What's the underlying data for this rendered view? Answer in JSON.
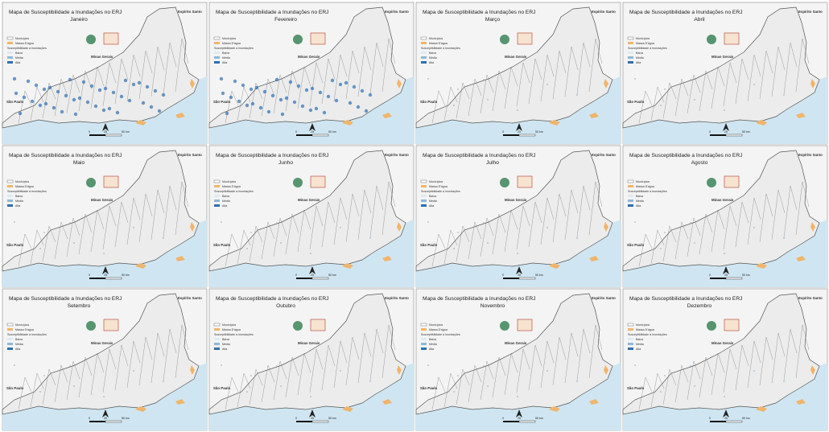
{
  "panels": [
    {
      "title": "Mapa de Susceptibilidade a Inundações no ERJ",
      "month": "Janeiro"
    },
    {
      "title": "Mapa de Susceptibilidade a Inundações no ERJ",
      "month": "Fevereiro"
    },
    {
      "title": "Mapa de Susceptibilidade a Inundações no ERJ",
      "month": "Março"
    },
    {
      "title": "Mapa de Susceptibilidade a Inundações no ERJ",
      "month": "Abril"
    },
    {
      "title": "Mapa de Susceptibilidade a Inundações no ERJ",
      "month": "Maio"
    },
    {
      "title": "Mapa de Susceptibilidade a Inundações no ERJ",
      "month": "Junho"
    },
    {
      "title": "Mapa de Susceptibilidade a Inundações no ERJ",
      "month": "Julho"
    },
    {
      "title": "Mapa de Susceptibilidade a Inundações no ERJ",
      "month": "Agosto"
    },
    {
      "title": "Mapa de Susceptibilidade a Inundações no ERJ",
      "month": "Setembro"
    },
    {
      "title": "Mapa de Susceptibilidade a Inundações no ERJ",
      "month": "Outubro"
    },
    {
      "title": "Mapa de Susceptibilidade a Inundações no ERJ",
      "month": "Novembro"
    },
    {
      "title": "Mapa de Susceptibilidade a Inundações no ERJ",
      "month": "Dezembro"
    }
  ],
  "legend": {
    "municipios": "Municípios",
    "agua": "Massa D'água",
    "heading": "Susceptibilidade a Inundações",
    "classes": [
      "Baixa",
      "Média",
      "Alta"
    ]
  },
  "labels": {
    "mg": "Minas Gerais",
    "es": "Espírito Santo",
    "sp": "São Paulo"
  },
  "scale": [
    "0",
    "25",
    "50 km"
  ]
}
